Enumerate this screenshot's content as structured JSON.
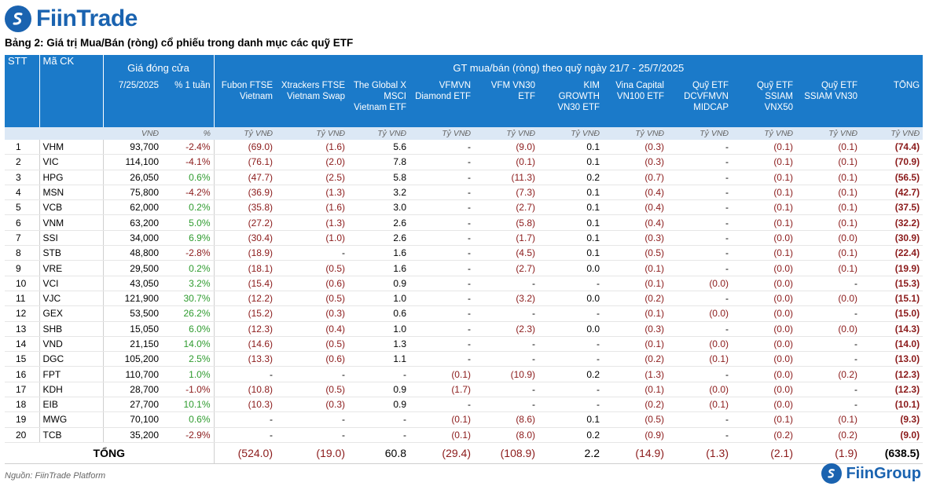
{
  "brand": {
    "name": "FiinTrade",
    "footer_name": "FiinGroup",
    "color": "#1a63b0"
  },
  "caption": "Bảng 2: Giá trị Mua/Bán (ròng) cổ phiếu trong danh mục các quỹ ETF",
  "header": {
    "stt": "STT",
    "ma_ck": "Mã CK",
    "gia_dong_cua": "Giá đóng cửa",
    "gt_group": "GT mua/bán (ròng) theo quỹ ngày 21/7 - 25/7/2025",
    "date_col": "7/25/2025",
    "pct_col": "% 1 tuần",
    "funds": [
      "Fubon FTSE Vietnam",
      "Xtrackers FTSE Vietnam Swap",
      "The Global X MSCI Vietnam ETF",
      "VFMVN Diamond ETF",
      "VFM VN30 ETF",
      "KIM GROWTH VN30 ETF",
      "Vina Capital VN100 ETF",
      "Quỹ ETF DCVFMVN MIDCAP",
      "Quỹ ETF SSIAM VNX50",
      "Quỹ ETF SSIAM VN30",
      "TỔNG"
    ]
  },
  "units": {
    "price": "VNĐ",
    "pct": "%",
    "fund": "Tỷ VNĐ"
  },
  "rows": [
    {
      "stt": "1",
      "code": "VHM",
      "price": "93,700",
      "pct": "-2.4%",
      "pct_sign": "neg",
      "vals": [
        "(69.0)",
        "(1.6)",
        "5.6",
        "-",
        "(9.0)",
        "0.1",
        "(0.3)",
        "-",
        "(0.1)",
        "(0.1)",
        "(74.4)"
      ]
    },
    {
      "stt": "2",
      "code": "VIC",
      "price": "114,100",
      "pct": "-4.1%",
      "pct_sign": "neg",
      "vals": [
        "(76.1)",
        "(2.0)",
        "7.8",
        "-",
        "(0.1)",
        "0.1",
        "(0.3)",
        "-",
        "(0.1)",
        "(0.1)",
        "(70.9)"
      ]
    },
    {
      "stt": "3",
      "code": "HPG",
      "price": "26,050",
      "pct": "0.6%",
      "pct_sign": "pos",
      "vals": [
        "(47.7)",
        "(2.5)",
        "5.8",
        "-",
        "(11.3)",
        "0.2",
        "(0.7)",
        "-",
        "(0.1)",
        "(0.1)",
        "(56.5)"
      ]
    },
    {
      "stt": "4",
      "code": "MSN",
      "price": "75,800",
      "pct": "-4.2%",
      "pct_sign": "neg",
      "vals": [
        "(36.9)",
        "(1.3)",
        "3.2",
        "-",
        "(7.3)",
        "0.1",
        "(0.4)",
        "-",
        "(0.1)",
        "(0.1)",
        "(42.7)"
      ]
    },
    {
      "stt": "5",
      "code": "VCB",
      "price": "62,000",
      "pct": "0.2%",
      "pct_sign": "pos",
      "vals": [
        "(35.8)",
        "(1.6)",
        "3.0",
        "-",
        "(2.7)",
        "0.1",
        "(0.4)",
        "-",
        "(0.1)",
        "(0.1)",
        "(37.5)"
      ]
    },
    {
      "stt": "6",
      "code": "VNM",
      "price": "63,200",
      "pct": "5.0%",
      "pct_sign": "pos",
      "vals": [
        "(27.2)",
        "(1.3)",
        "2.6",
        "-",
        "(5.8)",
        "0.1",
        "(0.4)",
        "-",
        "(0.1)",
        "(0.1)",
        "(32.2)"
      ]
    },
    {
      "stt": "7",
      "code": "SSI",
      "price": "34,000",
      "pct": "6.9%",
      "pct_sign": "pos",
      "vals": [
        "(30.4)",
        "(1.0)",
        "2.6",
        "-",
        "(1.7)",
        "0.1",
        "(0.3)",
        "-",
        "(0.0)",
        "(0.0)",
        "(30.9)"
      ]
    },
    {
      "stt": "8",
      "code": "STB",
      "price": "48,800",
      "pct": "-2.8%",
      "pct_sign": "neg",
      "vals": [
        "(18.9)",
        "-",
        "1.6",
        "-",
        "(4.5)",
        "0.1",
        "(0.5)",
        "-",
        "(0.1)",
        "(0.1)",
        "(22.4)"
      ]
    },
    {
      "stt": "9",
      "code": "VRE",
      "price": "29,500",
      "pct": "0.2%",
      "pct_sign": "pos",
      "vals": [
        "(18.1)",
        "(0.5)",
        "1.6",
        "-",
        "(2.7)",
        "0.0",
        "(0.1)",
        "-",
        "(0.0)",
        "(0.1)",
        "(19.9)"
      ]
    },
    {
      "stt": "10",
      "code": "VCI",
      "price": "43,050",
      "pct": "3.2%",
      "pct_sign": "pos",
      "vals": [
        "(15.4)",
        "(0.6)",
        "0.9",
        "-",
        "-",
        "-",
        "(0.1)",
        "(0.0)",
        "(0.0)",
        "-",
        "(15.3)"
      ]
    },
    {
      "stt": "11",
      "code": "VJC",
      "price": "121,900",
      "pct": "30.7%",
      "pct_sign": "pos",
      "vals": [
        "(12.2)",
        "(0.5)",
        "1.0",
        "-",
        "(3.2)",
        "0.0",
        "(0.2)",
        "-",
        "(0.0)",
        "(0.0)",
        "(15.1)"
      ]
    },
    {
      "stt": "12",
      "code": "GEX",
      "price": "53,500",
      "pct": "26.2%",
      "pct_sign": "pos",
      "vals": [
        "(15.2)",
        "(0.3)",
        "0.6",
        "-",
        "-",
        "-",
        "(0.1)",
        "(0.0)",
        "(0.0)",
        "-",
        "(15.0)"
      ]
    },
    {
      "stt": "13",
      "code": "SHB",
      "price": "15,050",
      "pct": "6.0%",
      "pct_sign": "pos",
      "vals": [
        "(12.3)",
        "(0.4)",
        "1.0",
        "-",
        "(2.3)",
        "0.0",
        "(0.3)",
        "-",
        "(0.0)",
        "(0.0)",
        "(14.3)"
      ]
    },
    {
      "stt": "14",
      "code": "VND",
      "price": "21,150",
      "pct": "14.0%",
      "pct_sign": "pos",
      "vals": [
        "(14.6)",
        "(0.5)",
        "1.3",
        "-",
        "-",
        "-",
        "(0.1)",
        "(0.0)",
        "(0.0)",
        "-",
        "(14.0)"
      ]
    },
    {
      "stt": "15",
      "code": "DGC",
      "price": "105,200",
      "pct": "2.5%",
      "pct_sign": "pos",
      "vals": [
        "(13.3)",
        "(0.6)",
        "1.1",
        "-",
        "-",
        "-",
        "(0.2)",
        "(0.1)",
        "(0.0)",
        "-",
        "(13.0)"
      ]
    },
    {
      "stt": "16",
      "code": "FPT",
      "price": "110,700",
      "pct": "1.0%",
      "pct_sign": "pos",
      "vals": [
        "-",
        "-",
        "-",
        "(0.1)",
        "(10.9)",
        "0.2",
        "(1.3)",
        "-",
        "(0.0)",
        "(0.2)",
        "(12.3)"
      ]
    },
    {
      "stt": "17",
      "code": "KDH",
      "price": "28,700",
      "pct": "-1.0%",
      "pct_sign": "neg",
      "vals": [
        "(10.8)",
        "(0.5)",
        "0.9",
        "(1.7)",
        "-",
        "-",
        "(0.1)",
        "(0.0)",
        "(0.0)",
        "-",
        "(12.3)"
      ]
    },
    {
      "stt": "18",
      "code": "EIB",
      "price": "27,700",
      "pct": "10.1%",
      "pct_sign": "pos",
      "vals": [
        "(10.3)",
        "(0.3)",
        "0.9",
        "-",
        "-",
        "-",
        "(0.2)",
        "(0.1)",
        "(0.0)",
        "-",
        "(10.1)"
      ]
    },
    {
      "stt": "19",
      "code": "MWG",
      "price": "70,100",
      "pct": "0.6%",
      "pct_sign": "pos",
      "vals": [
        "-",
        "-",
        "-",
        "(0.1)",
        "(8.6)",
        "0.1",
        "(0.5)",
        "-",
        "(0.1)",
        "(0.1)",
        "(9.3)"
      ]
    },
    {
      "stt": "20",
      "code": "TCB",
      "price": "35,200",
      "pct": "-2.9%",
      "pct_sign": "neg",
      "vals": [
        "-",
        "-",
        "-",
        "(0.1)",
        "(8.0)",
        "0.2",
        "(0.9)",
        "-",
        "(0.2)",
        "(0.2)",
        "(9.0)"
      ]
    }
  ],
  "total": {
    "label": "TỔNG",
    "vals": [
      "(524.0)",
      "(19.0)",
      "60.8",
      "(29.4)",
      "(108.9)",
      "2.2",
      "(14.9)",
      "(1.3)",
      "(2.1)",
      "(1.9)",
      "(638.5)"
    ]
  },
  "source": "Nguồn: FiinTrade Platform",
  "colors": {
    "header_bg": "#1b7ac9",
    "unit_bg": "#dce8f5",
    "negative": "#8b1a1a",
    "positive": "#2e9b2e"
  }
}
